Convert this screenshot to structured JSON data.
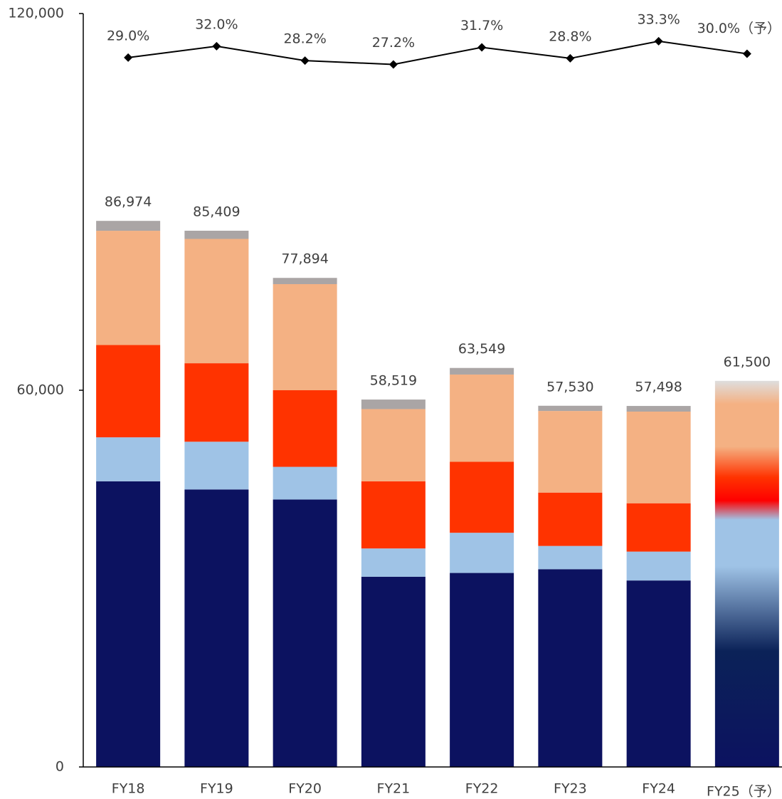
{
  "chart_data": {
    "type": "bar",
    "categories": [
      "FY18",
      "FY19",
      "FY20",
      "FY21",
      "FY22",
      "FY23",
      "FY24",
      "FY25（予）"
    ],
    "series": [
      {
        "color": "#0c1260",
        "values": [
          45500,
          44200,
          42600,
          30300,
          30900,
          31500,
          29700,
          null
        ]
      },
      {
        "color": "#9fc3e6",
        "values": [
          7000,
          7600,
          5200,
          4500,
          6400,
          3700,
          4600,
          null
        ]
      },
      {
        "color": "#ff3300",
        "values": [
          14700,
          12500,
          12200,
          10700,
          11300,
          8500,
          7700,
          null
        ]
      },
      {
        "color": "#f4b183",
        "values": [
          18200,
          19800,
          16900,
          11500,
          13900,
          13000,
          14600,
          null
        ]
      },
      {
        "color": "#aaa5a5",
        "values": [
          1574,
          1309,
          994,
          1519,
          1049,
          830,
          898,
          null
        ]
      },
      {
        "type": "line",
        "axis": "y2",
        "color": "#000000",
        "values": [
          29.0,
          32.0,
          28.2,
          27.2,
          31.7,
          28.8,
          33.3,
          30.0
        ],
        "value_labels": [
          "29.0%",
          "32.0%",
          "28.2%",
          "27.2%",
          "31.7%",
          "28.8%",
          "33.3%",
          "30.0%（予）"
        ]
      }
    ],
    "totals": [
      86974,
      85409,
      77894,
      58519,
      63549,
      57530,
      57498,
      61500
    ],
    "total_labels": [
      "86,974",
      "85,409",
      "77,894",
      "58,519",
      "63,549",
      "57,530",
      "57,498",
      "61,500"
    ],
    "ylim": [
      0,
      120000
    ],
    "yticks": [
      0,
      {
        "value": 60000,
        "label": "60,000"
      },
      {
        "value": 120000,
        "label": "120,000"
      }
    ],
    "y2lim": [
      -157.8,
      40.6
    ]
  }
}
